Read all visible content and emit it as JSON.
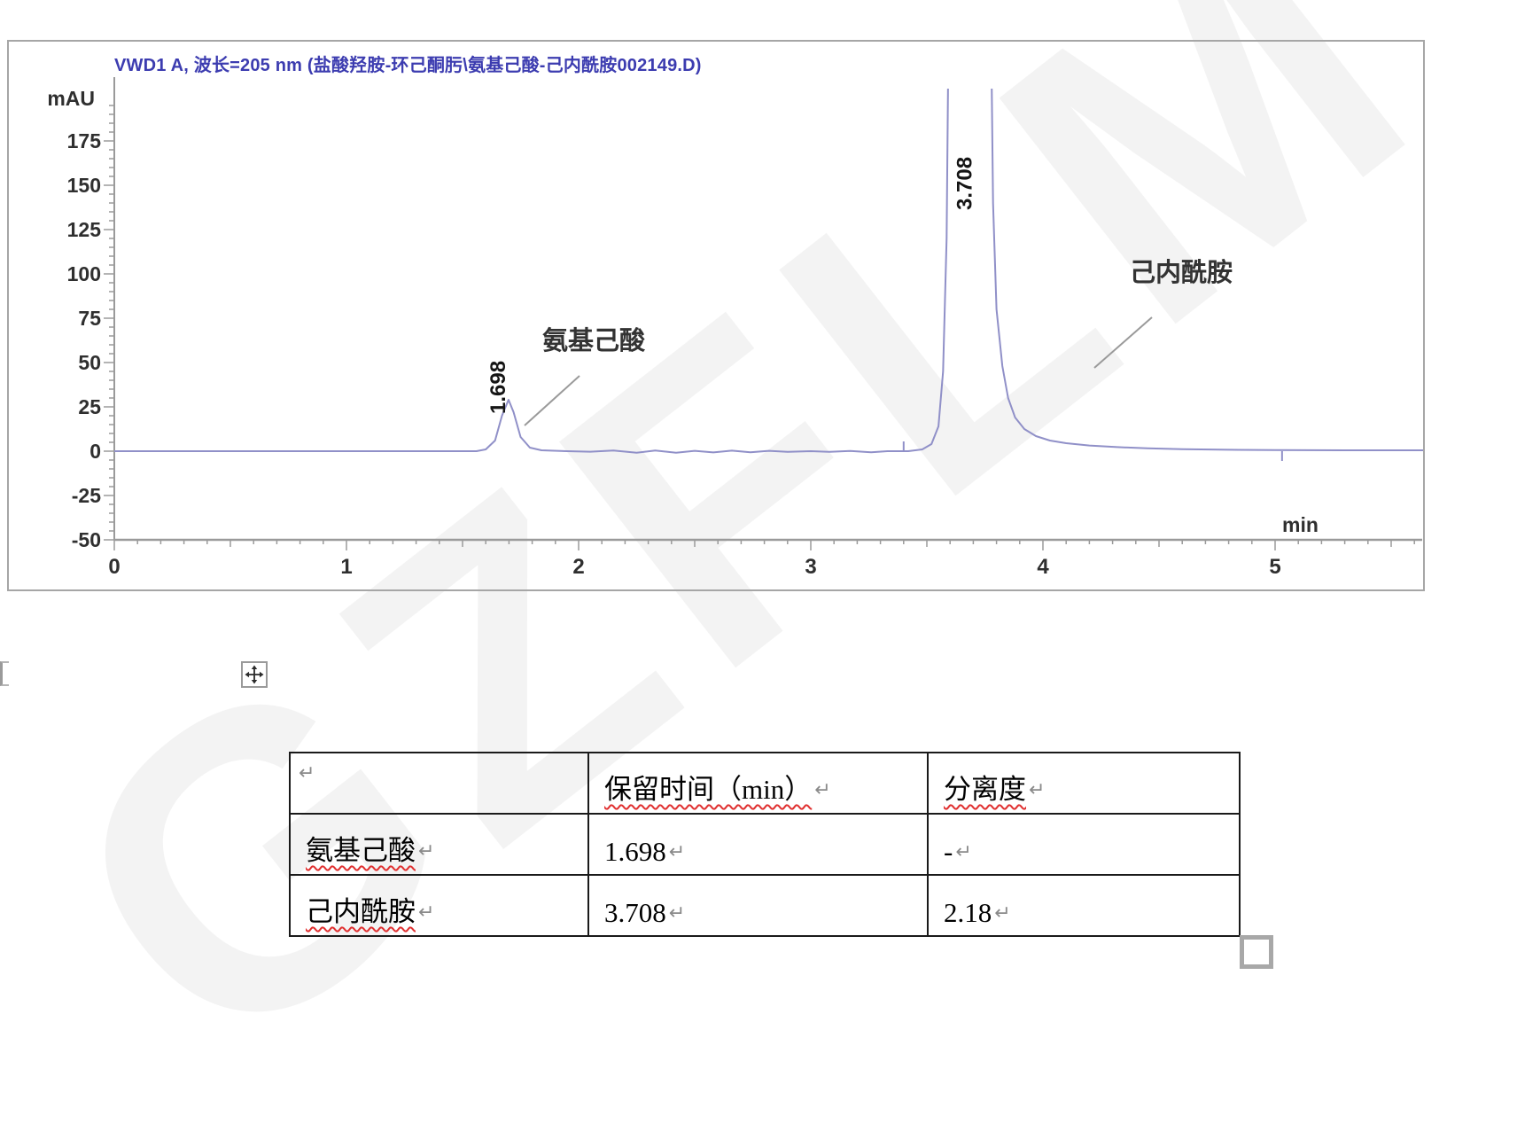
{
  "page": {
    "watermark_text": "GZFLM"
  },
  "chart": {
    "title": "VWD1 A, 波长=205 nm (盐酸羟胺-环己酮肟\\氨基己酸-己内酰胺002149.D)",
    "y_axis_unit": "mAU",
    "x_axis_unit": "min"
  },
  "chart_data": {
    "type": "line",
    "title": "VWD1 A, 波长=205 nm (盐酸羟胺-环己酮肟\\氨基己酸-己内酰胺002149.D)",
    "xlabel": "min",
    "ylabel": "mAU",
    "xlim": [
      0,
      5.65
    ],
    "ylim": [
      -50,
      205
    ],
    "x_ticks": [
      0,
      1,
      2,
      3,
      4,
      5
    ],
    "y_ticks": [
      -50,
      -25,
      0,
      25,
      50,
      75,
      100,
      125,
      150,
      175
    ],
    "grid": false,
    "legend": "none",
    "series": [
      {
        "name": "VWD1 A, 205 nm signal",
        "profile_t_mau": [
          [
            0,
            0
          ],
          [
            0.3,
            0
          ],
          [
            0.6,
            0
          ],
          [
            1.0,
            0
          ],
          [
            1.3,
            0
          ],
          [
            1.56,
            0
          ],
          [
            1.6,
            1
          ],
          [
            1.64,
            6
          ],
          [
            1.67,
            20
          ],
          [
            1.698,
            29
          ],
          [
            1.72,
            22
          ],
          [
            1.75,
            8
          ],
          [
            1.79,
            2
          ],
          [
            1.84,
            0.5
          ],
          [
            1.95,
            0
          ],
          [
            2.05,
            -0.3
          ],
          [
            2.15,
            0.4
          ],
          [
            2.25,
            -0.9
          ],
          [
            2.33,
            0.4
          ],
          [
            2.42,
            -0.9
          ],
          [
            2.5,
            0.2
          ],
          [
            2.58,
            -0.7
          ],
          [
            2.66,
            0.3
          ],
          [
            2.74,
            -0.6
          ],
          [
            2.82,
            0.2
          ],
          [
            2.9,
            -0.4
          ],
          [
            3.0,
            0
          ],
          [
            3.08,
            -0.4
          ],
          [
            3.17,
            0.1
          ],
          [
            3.26,
            -0.6
          ],
          [
            3.33,
            0
          ],
          [
            3.42,
            0
          ],
          [
            3.48,
            1
          ],
          [
            3.52,
            4
          ],
          [
            3.55,
            14
          ],
          [
            3.57,
            45
          ],
          [
            3.585,
            120
          ],
          [
            3.595,
            260
          ],
          [
            3.605,
            450
          ],
          [
            3.765,
            450
          ],
          [
            3.775,
            260
          ],
          [
            3.785,
            140
          ],
          [
            3.8,
            80
          ],
          [
            3.825,
            48
          ],
          [
            3.85,
            30
          ],
          [
            3.88,
            19
          ],
          [
            3.92,
            12.5
          ],
          [
            3.97,
            8.5
          ],
          [
            4.03,
            6
          ],
          [
            4.1,
            4.5
          ],
          [
            4.2,
            3.2
          ],
          [
            4.32,
            2.3
          ],
          [
            4.45,
            1.6
          ],
          [
            4.6,
            1.1
          ],
          [
            4.8,
            0.8
          ],
          [
            5.0,
            0.6
          ],
          [
            5.3,
            0.5
          ],
          [
            5.65,
            0.5
          ]
        ]
      }
    ],
    "peaks": [
      {
        "rt_min": 1.698,
        "label": "1.698",
        "annotation": "氨基己酸",
        "apex_mAU": 29,
        "clipped": false
      },
      {
        "rt_min": 3.708,
        "label": "3.708",
        "annotation": "己内酰胺",
        "apex_mAU": 205,
        "clipped": true
      }
    ],
    "event_marks": [
      {
        "t_min": 3.4,
        "direction": "up"
      },
      {
        "t_min": 5.03,
        "direction": "down"
      }
    ]
  },
  "table": {
    "headers": [
      {
        "text": "",
        "misspell": false
      },
      {
        "text": "保留时间（min）",
        "misspell": true
      },
      {
        "text": "分离度",
        "misspell": true
      }
    ],
    "rows": [
      [
        {
          "text": "氨基己酸",
          "misspell": true
        },
        {
          "text": "1.698",
          "misspell": false
        },
        {
          "text": "-",
          "misspell": false
        }
      ],
      [
        {
          "text": "己内酰胺",
          "misspell": true
        },
        {
          "text": "3.708",
          "misspell": false
        },
        {
          "text": "2.18",
          "misspell": false
        }
      ]
    ],
    "paragraph_mark": "↵"
  },
  "colors": {
    "signal": "#9090c8",
    "title": "#3c3cb0",
    "axis": "#9a9a9a",
    "tick_text": "#2f2f2f",
    "annotation_text": "#333333",
    "pointer_line": "#9a9a9a",
    "table_border": "#1a1a1a",
    "squiggle": "#e03030"
  }
}
